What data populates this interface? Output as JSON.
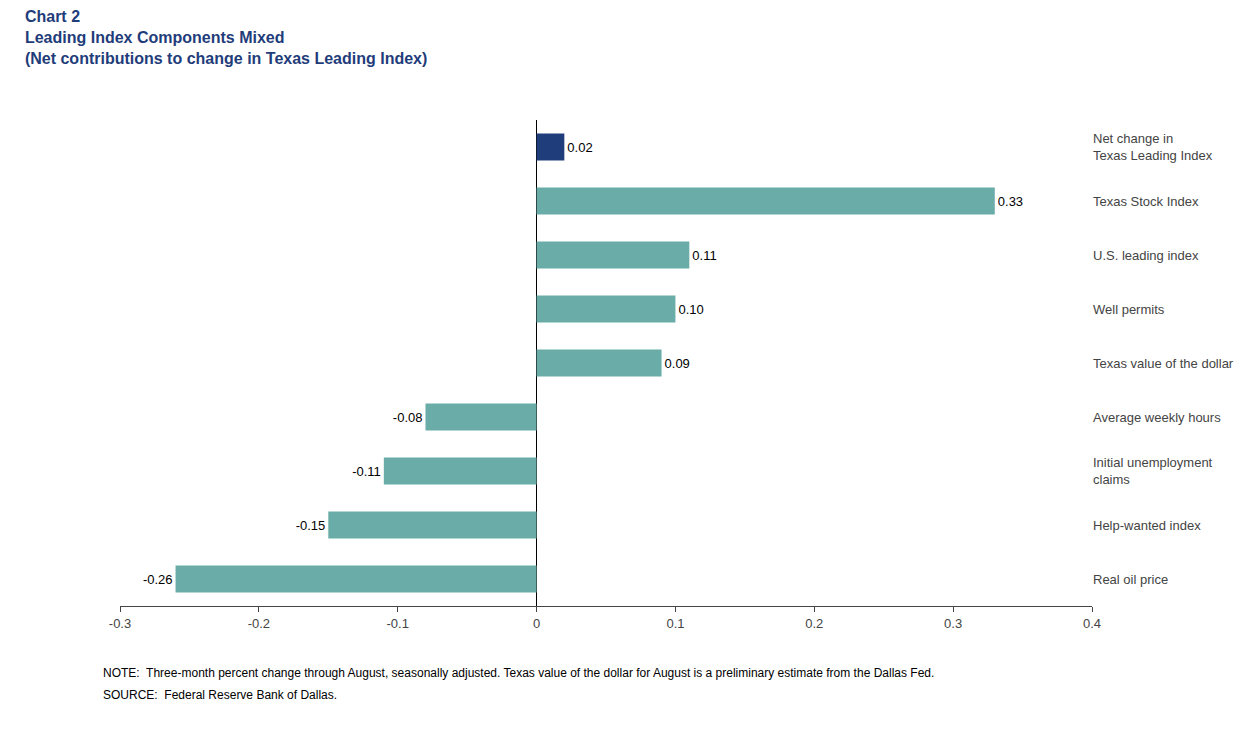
{
  "chart_data": {
    "type": "bar",
    "orientation": "horizontal",
    "title": "Chart 2",
    "subtitle": [
      "Leading Index Components Mixed",
      "(Net contributions to change in Texas Leading Index)"
    ],
    "title_color": "#1f3d7a",
    "categories": [
      "Real oil price",
      "Help-wanted index",
      "Initial unemployment\nclaims",
      "Average weekly hours",
      "Texas value of the dollar",
      "Well permits",
      "U.S. leading index",
      "Texas Stock Index",
      "Net change in\nTexas Leading Index"
    ],
    "values": [
      -0.26,
      -0.15,
      -0.11,
      -0.08,
      0.09,
      0.1,
      0.11,
      0.33,
      0.02
    ],
    "value_labels": [
      "-0.26",
      "-0.15",
      "-0.11",
      "-0.08",
      "0.09",
      "0.10",
      "0.11",
      "0.33",
      "0.02"
    ],
    "data_labels": true,
    "colors": [
      "#6aada8",
      "#6aada8",
      "#6aada8",
      "#6aada8",
      "#6aada8",
      "#6aada8",
      "#6aada8",
      "#6aada8",
      "#1f3d7a"
    ],
    "xlim": [
      -0.3,
      0.4
    ],
    "xticks": [
      -0.3,
      -0.2,
      -0.1,
      0,
      0.1,
      0.2,
      0.3,
      0.4
    ],
    "grid": false,
    "annotations": [
      "NOTE:  Three-month percent change through August, seasonally adjusted. Texas value of the dollar for August is a preliminary estimate from the Dallas Fed.",
      "SOURCE:  Federal Reserve Bank of Dallas."
    ]
  }
}
